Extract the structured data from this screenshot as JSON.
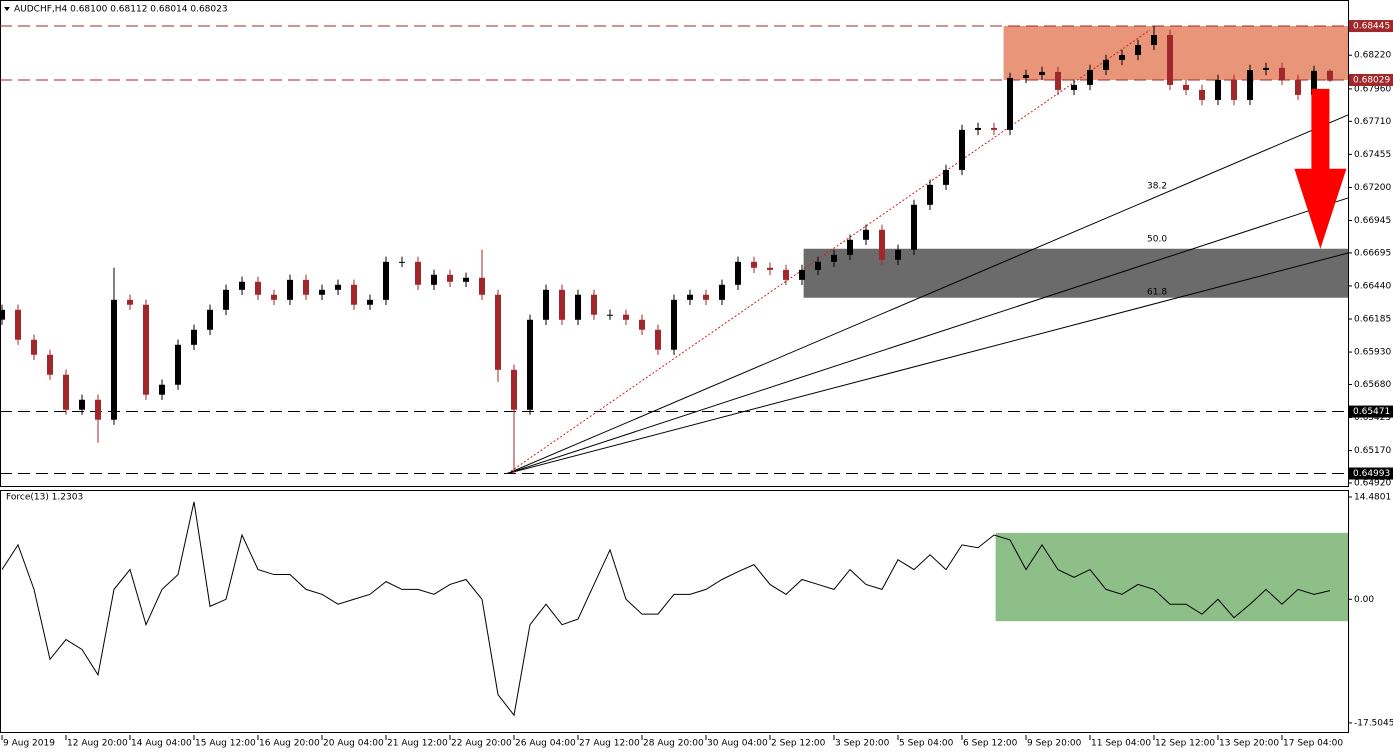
{
  "chart_data": [
    {
      "type": "candlestick",
      "title": "AUDCHF,H4  0.68100 0.68112 0.68014 0.68023",
      "up_color": "#000000",
      "down_color": "#a0282a",
      "open": [
        0.6618,
        0.66256,
        0.66025,
        0.65909,
        0.65755,
        0.65485,
        0.65562,
        0.65408,
        0.66333,
        0.66295,
        0.65601,
        0.65678,
        0.65986,
        0.66102,
        0.66256,
        0.6641,
        0.66472,
        0.66372,
        0.66333,
        0.66487,
        0.66372,
        0.6641,
        0.66449,
        0.66295,
        0.66333,
        0.66626,
        0.66626,
        0.66449,
        0.66526,
        0.66472,
        0.66503,
        0.66372,
        0.65793,
        0.65485,
        0.66179,
        0.6641,
        0.66179,
        0.66372,
        0.66218,
        0.66218,
        0.66179,
        0.66102,
        0.65948,
        0.66333,
        0.66372,
        0.66333,
        0.66449,
        0.66626,
        0.6658,
        0.66564,
        0.66487,
        0.66564,
        0.66626,
        0.6668,
        0.66796,
        0.66873,
        0.66642,
        0.66719,
        0.67066,
        0.6722,
        0.67335,
        0.67644,
        0.67659,
        0.67644,
        0.68045,
        0.68068,
        0.68091,
        0.67952,
        0.67991,
        0.68106,
        0.68184,
        0.68222,
        0.68299,
        0.68376,
        0.67991,
        0.67952,
        0.67875,
        0.68029,
        0.67875,
        0.68106,
        0.68122,
        0.68029,
        0.67914,
        0.681
      ],
      "high": [
        0.66296,
        0.66296,
        0.66065,
        0.65949,
        0.65795,
        0.65602,
        0.65602,
        0.6658,
        0.66373,
        0.66335,
        0.65718,
        0.66026,
        0.66142,
        0.66296,
        0.6645,
        0.66512,
        0.66512,
        0.66412,
        0.66527,
        0.66527,
        0.6645,
        0.66489,
        0.66489,
        0.66373,
        0.66666,
        0.66666,
        0.66666,
        0.66566,
        0.66566,
        0.66543,
        0.66719,
        0.66412,
        0.65833,
        0.66219,
        0.6645,
        0.6645,
        0.66412,
        0.66412,
        0.66258,
        0.66258,
        0.66219,
        0.66142,
        0.66373,
        0.66412,
        0.66412,
        0.66489,
        0.66666,
        0.66666,
        0.6662,
        0.66604,
        0.66604,
        0.66666,
        0.6672,
        0.66836,
        0.66913,
        0.66913,
        0.66759,
        0.67106,
        0.6726,
        0.67375,
        0.67684,
        0.67699,
        0.67699,
        0.68085,
        0.68108,
        0.68131,
        0.68131,
        0.68031,
        0.68146,
        0.68224,
        0.68262,
        0.68339,
        0.68445,
        0.68416,
        0.68031,
        0.67992,
        0.68069,
        0.68069,
        0.68146,
        0.68162,
        0.68162,
        0.68069,
        0.6814,
        0.68112
      ],
      "low": [
        0.6614,
        0.65985,
        0.65869,
        0.65715,
        0.65445,
        0.65445,
        0.6523,
        0.65368,
        0.66255,
        0.65561,
        0.65561,
        0.65638,
        0.65946,
        0.66062,
        0.66216,
        0.6637,
        0.66332,
        0.66293,
        0.66293,
        0.66332,
        0.66332,
        0.6637,
        0.66255,
        0.66255,
        0.66293,
        0.66586,
        0.66409,
        0.66409,
        0.66432,
        0.66432,
        0.66332,
        0.657,
        0.64993,
        0.65445,
        0.66139,
        0.66139,
        0.66139,
        0.66178,
        0.66178,
        0.66139,
        0.66062,
        0.65908,
        0.65908,
        0.66293,
        0.66293,
        0.66293,
        0.66409,
        0.6654,
        0.66524,
        0.66447,
        0.66447,
        0.66524,
        0.66586,
        0.6664,
        0.66756,
        0.66602,
        0.66602,
        0.66679,
        0.67026,
        0.6718,
        0.67295,
        0.67604,
        0.67604,
        0.67604,
        0.68005,
        0.68028,
        0.67912,
        0.67912,
        0.67951,
        0.68066,
        0.68144,
        0.68182,
        0.68259,
        0.67951,
        0.67912,
        0.67835,
        0.67835,
        0.67835,
        0.67835,
        0.68066,
        0.67989,
        0.67874,
        0.67874,
        0.68014
      ],
      "close": [
        0.66256,
        0.66025,
        0.65909,
        0.65755,
        0.65485,
        0.65562,
        0.65408,
        0.66333,
        0.66295,
        0.65601,
        0.65678,
        0.65986,
        0.66102,
        0.66256,
        0.6641,
        0.66472,
        0.66372,
        0.66333,
        0.66487,
        0.66372,
        0.6641,
        0.66449,
        0.66295,
        0.66333,
        0.66626,
        0.66626,
        0.66449,
        0.66526,
        0.66472,
        0.66503,
        0.66372,
        0.65793,
        0.65485,
        0.66179,
        0.6641,
        0.66179,
        0.66372,
        0.66218,
        0.66218,
        0.66179,
        0.66102,
        0.65948,
        0.66333,
        0.66372,
        0.66333,
        0.66449,
        0.66626,
        0.6658,
        0.66564,
        0.66487,
        0.66564,
        0.66626,
        0.6668,
        0.66796,
        0.66873,
        0.66642,
        0.66719,
        0.67066,
        0.6722,
        0.67335,
        0.67644,
        0.67659,
        0.67644,
        0.68045,
        0.68068,
        0.68091,
        0.67952,
        0.67991,
        0.68106,
        0.68184,
        0.68222,
        0.68299,
        0.68376,
        0.67991,
        0.67952,
        0.67875,
        0.68029,
        0.67875,
        0.68106,
        0.68122,
        0.68029,
        0.67914,
        0.681,
        0.68023
      ],
      "xlim": [
        -0.125,
        84.125
      ],
      "xticks": [
        {
          "value": 0,
          "label": "9 Aug 2019"
        },
        {
          "value": 4,
          "label": "12 Aug 20:00"
        },
        {
          "value": 8,
          "label": "14 Aug 04:00"
        },
        {
          "value": 12,
          "label": "15 Aug 12:00"
        },
        {
          "value": 16,
          "label": "16 Aug 20:00"
        },
        {
          "value": 20,
          "label": "20 Aug 04:00"
        },
        {
          "value": 24,
          "label": "21 Aug 12:00"
        },
        {
          "value": 28,
          "label": "22 Aug 20:00"
        },
        {
          "value": 32,
          "label": "26 Aug 04:00"
        },
        {
          "value": 36,
          "label": "27 Aug 12:00"
        },
        {
          "value": 40,
          "label": "28 Aug 20:00"
        },
        {
          "value": 44,
          "label": "30 Aug 04:00"
        },
        {
          "value": 48,
          "label": "2 Sep 12:00"
        },
        {
          "value": 52,
          "label": "3 Sep 20:00"
        },
        {
          "value": 56,
          "label": "5 Sep 04:00"
        },
        {
          "value": 60,
          "label": "6 Sep 12:00"
        },
        {
          "value": 64,
          "label": "9 Sep 20:00"
        },
        {
          "value": 68,
          "label": "11 Sep 04:00"
        },
        {
          "value": 72,
          "label": "12 Sep 12:00"
        },
        {
          "value": 76,
          "label": "13 Sep 20:00"
        },
        {
          "value": 80,
          "label": "17 Sep 04:00"
        }
      ],
      "ylim": [
        0.64889,
        0.68646
      ],
      "yticks": [
        {
          "value": 0.6822,
          "label": "0.68220"
        },
        {
          "value": 0.6796,
          "label": "0.67960"
        },
        {
          "value": 0.6771,
          "label": "0.67710"
        },
        {
          "value": 0.67455,
          "label": "0.67455"
        },
        {
          "value": 0.672,
          "label": "0.67200"
        },
        {
          "value": 0.66945,
          "label": "0.66945"
        },
        {
          "value": 0.66695,
          "label": "0.66695"
        },
        {
          "value": 0.6644,
          "label": "0.66440"
        },
        {
          "value": 0.66185,
          "label": "0.66185"
        },
        {
          "value": 0.6593,
          "label": "0.65930"
        },
        {
          "value": 0.6568,
          "label": "0.65680"
        },
        {
          "value": 0.65425,
          "label": "0.65425"
        },
        {
          "value": 0.6517,
          "label": "0.65170"
        },
        {
          "value": 0.6492,
          "label": "0.64920"
        }
      ],
      "levels": [
        {
          "value": 0.68445,
          "label": "0.68445",
          "color": "#a0282a"
        },
        {
          "value": 0.68029,
          "label": "0.68029",
          "color": "#a0282a"
        },
        {
          "value": 0.65471,
          "label": "0.65471",
          "color": "#000000"
        },
        {
          "value": 0.64993,
          "label": "0.64993",
          "color": "#000000"
        }
      ],
      "zones": [
        {
          "x": [
            62.6,
            84.125
          ],
          "y": [
            0.68029,
            0.68445
          ],
          "color": "#e8957a"
        },
        {
          "x": [
            50.1,
            84.125
          ],
          "y": [
            0.66349,
            0.66727
          ],
          "color": "#6b6b6b"
        }
      ],
      "fan": {
        "origin": [
          31.6,
          0.64993
        ],
        "ends": [
          0.67759,
          0.67119,
          0.66694
        ],
        "labels": [
          "38.2",
          "50.0",
          "61.8"
        ],
        "trend_end": [
          71.75,
          0.68415
        ]
      },
      "arrow": {
        "x": 82.4,
        "y": [
          0.6796,
          0.66727
        ],
        "color": "#ff0000"
      }
    },
    {
      "type": "line",
      "title": "Force(13) 1.2303",
      "color": "#000000",
      "values": [
        4.2,
        7.7,
        1.4,
        -8.5,
        -5.7,
        -7.1,
        -10.7,
        1.4,
        4.2,
        -3.6,
        1.4,
        3.5,
        13.8,
        -1.0,
        0,
        9.1,
        4.2,
        3.5,
        3.5,
        1.4,
        0.7,
        -0.7,
        0,
        0.7,
        2.5,
        1.4,
        1.4,
        0.7,
        2.1,
        2.8,
        0,
        -13.5,
        -16.4,
        -3.6,
        -0.7,
        -3.6,
        -2.8,
        2.1,
        7.0,
        0,
        -2.1,
        -2.1,
        0.7,
        0.7,
        1.4,
        2.8,
        3.9,
        4.9,
        2.1,
        0.7,
        2.8,
        2.1,
        1.4,
        4.2,
        2.1,
        1.4,
        5.6,
        4.2,
        6.3,
        4.2,
        7.7,
        7.3,
        9.1,
        8.4,
        4.2,
        7.7,
        4.2,
        3.1,
        4.2,
        1.4,
        0.7,
        2.1,
        1.4,
        -0.7,
        -0.7,
        -2.1,
        0,
        -2.6,
        -0.7,
        1.4,
        -0.7,
        1.4,
        0.7,
        1.23
      ],
      "ylim": [
        -18.93,
        15.47
      ],
      "yticks": [
        {
          "value": 14.4801,
          "label": "14.4801"
        },
        {
          "value": 0,
          "label": "0.00"
        },
        {
          "value": -17.5045,
          "label": "-17.5045"
        }
      ],
      "zones": [
        {
          "x": [
            62.1,
            84.125
          ],
          "y": [
            -3.1,
            9.4
          ],
          "color": "#8fbf88"
        }
      ]
    }
  ]
}
